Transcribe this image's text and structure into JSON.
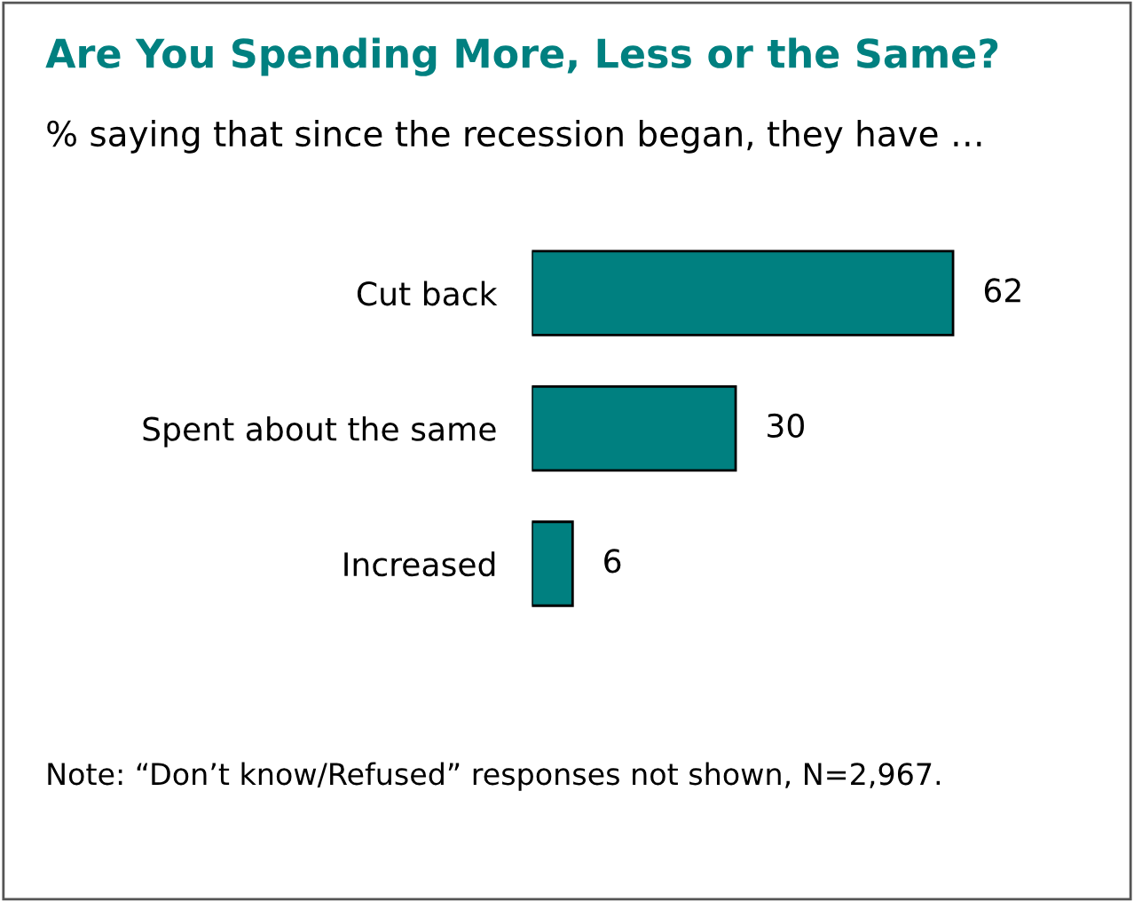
{
  "chart_data": {
    "type": "bar",
    "orientation": "horizontal",
    "title": "Are You Spending More, Less or the Same?",
    "subtitle": "% saying that since the recession began, they have …",
    "categories": [
      "Cut back",
      "Spent about the same",
      "Increased"
    ],
    "values": [
      62,
      30,
      6
    ],
    "color": "#008080",
    "data_labels": true,
    "grid": false,
    "legend": false,
    "annotations": [
      "Note: “Don’t know/Refused” responses not shown, N=2,967."
    ]
  }
}
